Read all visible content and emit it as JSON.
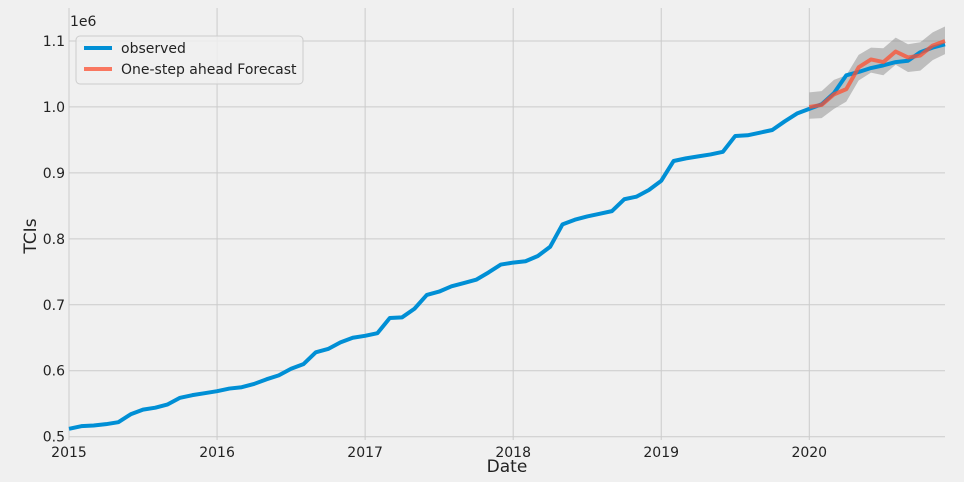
{
  "chart_data": {
    "type": "line",
    "title": "",
    "xlabel": "Date",
    "ylabel": "TCIs",
    "y_offset_label": "1e6",
    "xlim": [
      "2015-01",
      "2020-12"
    ],
    "ylim": [
      495000,
      1150000
    ],
    "x_ticks": [
      "2015",
      "2016",
      "2017",
      "2018",
      "2019",
      "2020"
    ],
    "y_ticks": [
      0.5,
      0.6,
      0.7,
      0.8,
      0.9,
      1.0,
      1.1
    ],
    "grid": true,
    "legend_position": "top-left",
    "series": [
      {
        "name": "observed",
        "color": "#008fd5",
        "x": [
          "2015-01",
          "2015-02",
          "2015-03",
          "2015-04",
          "2015-05",
          "2015-06",
          "2015-07",
          "2015-08",
          "2015-09",
          "2015-10",
          "2015-11",
          "2015-12",
          "2016-01",
          "2016-02",
          "2016-03",
          "2016-04",
          "2016-05",
          "2016-06",
          "2016-07",
          "2016-08",
          "2016-09",
          "2016-10",
          "2016-11",
          "2016-12",
          "2017-01",
          "2017-02",
          "2017-03",
          "2017-04",
          "2017-05",
          "2017-06",
          "2017-07",
          "2017-08",
          "2017-09",
          "2017-10",
          "2017-11",
          "2017-12",
          "2018-01",
          "2018-02",
          "2018-03",
          "2018-04",
          "2018-05",
          "2018-06",
          "2018-07",
          "2018-08",
          "2018-09",
          "2018-10",
          "2018-11",
          "2018-12",
          "2019-01",
          "2019-02",
          "2019-03",
          "2019-04",
          "2019-05",
          "2019-06",
          "2019-07",
          "2019-08",
          "2019-09",
          "2019-10",
          "2019-11",
          "2019-12",
          "2020-01",
          "2020-02",
          "2020-03",
          "2020-04",
          "2020-05",
          "2020-06",
          "2020-07",
          "2020-08",
          "2020-09",
          "2020-10",
          "2020-11",
          "2020-12"
        ],
        "values": [
          512000,
          516000,
          517000,
          519000,
          522000,
          534000,
          541000,
          544000,
          549000,
          559000,
          563000,
          566000,
          569000,
          573000,
          575000,
          580000,
          587000,
          593000,
          603000,
          610000,
          628000,
          633000,
          643000,
          650000,
          653000,
          657000,
          680000,
          681000,
          694000,
          715000,
          720000,
          728000,
          733000,
          738000,
          749000,
          761000,
          764000,
          766000,
          774000,
          788000,
          822000,
          829000,
          834000,
          838000,
          842000,
          860000,
          864000,
          874000,
          888000,
          918000,
          922000,
          925000,
          928000,
          932000,
          956000,
          957000,
          961000,
          965000,
          978000,
          990000,
          997000,
          1004000,
          1021000,
          1048000,
          1053000,
          1059000,
          1063000,
          1068000,
          1070000,
          1083000,
          1090000,
          1095000
        ]
      },
      {
        "name": "One-step ahead Forecast",
        "color": "#fc4f30",
        "x": [
          "2020-01",
          "2020-02",
          "2020-03",
          "2020-04",
          "2020-05",
          "2020-06",
          "2020-07",
          "2020-08",
          "2020-09",
          "2020-10",
          "2020-11",
          "2020-12"
        ],
        "values": [
          1000000,
          1003000,
          1019000,
          1027000,
          1060000,
          1072000,
          1068000,
          1084000,
          1075000,
          1078000,
          1093000,
          1100000
        ],
        "ci_lower": [
          982000,
          983000,
          997000,
          1008000,
          1040000,
          1052000,
          1048000,
          1064000,
          1053000,
          1055000,
          1071000,
          1080000
        ],
        "ci_upper": [
          1022000,
          1024000,
          1041000,
          1048000,
          1079000,
          1090000,
          1089000,
          1105000,
          1095000,
          1098000,
          1113000,
          1122000
        ]
      }
    ]
  }
}
